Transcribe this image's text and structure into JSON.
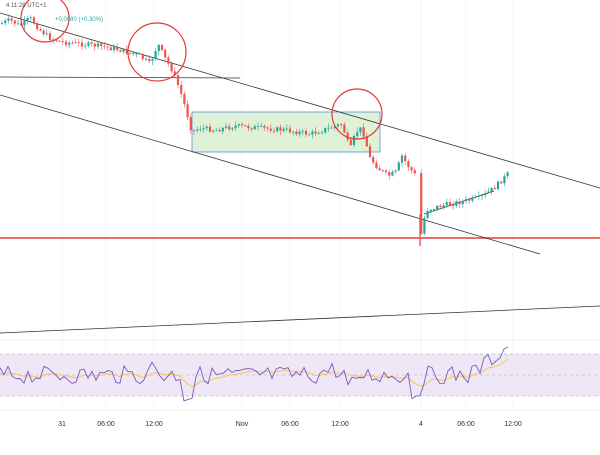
{
  "header": {
    "time_text": "4 11:28 UTC+1",
    "change_text": "+0.0080 (+0.30%)"
  },
  "colors": {
    "up": "#26a69a",
    "down": "#ef5350",
    "trendline": "#333333",
    "support": "#e53935",
    "circle": "#e53935",
    "range_fill": "#dff2d8",
    "range_stroke": "#5b8fd6",
    "rsi_line": "#7e57c2",
    "rsi_ma": "#f2c94c",
    "rsi_band": "#ede7f6"
  },
  "chart_data": {
    "type": "candlestick",
    "title": "",
    "xlabel": "",
    "ylabel": "",
    "x_ticks": [
      "31",
      "06:00",
      "12:00",
      "Nov",
      "06:00",
      "12:00",
      "4",
      "06:00",
      "12:00"
    ],
    "grid": true,
    "rsi_panel": true
  }
}
